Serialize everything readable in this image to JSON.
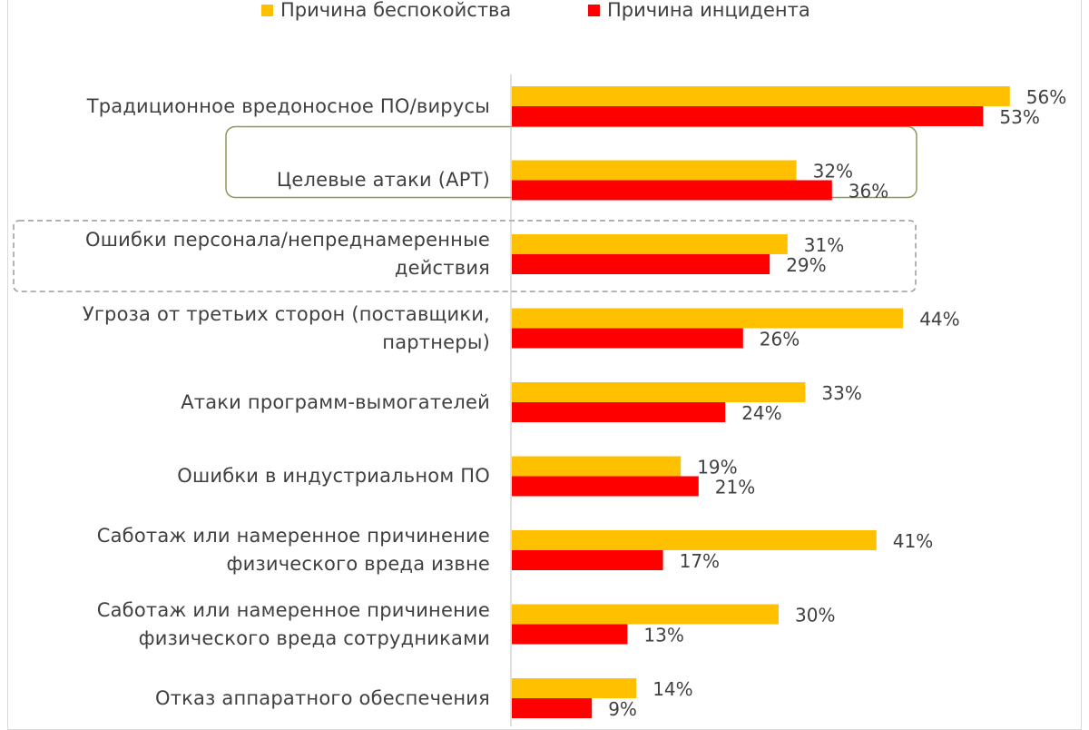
{
  "chart_data": {
    "type": "bar",
    "orientation": "horizontal",
    "categories": [
      "Традиционное вредоносное ПО/вирусы",
      "Целевые атаки (APT)",
      "Ошибки персонала/непреднамеренные действия",
      "Угроза от третьих сторон (поставщики, партнеры)",
      "Атаки программ-вымогателей",
      "Ошибки в индустриальном ПО",
      "Саботаж или намеренное причинение физического вреда извне",
      "Саботаж или намеренное причинение физического вреда сотрудниками",
      "Отказ аппаратного обеспечения"
    ],
    "category_lines": [
      [
        "Традиционное вредоносное ПО/вирусы"
      ],
      [
        "Целевые атаки (APT)"
      ],
      [
        "Ошибки персонала/непреднамеренные",
        "действия"
      ],
      [
        "Угроза от третьих сторон (поставщики,",
        "партнеры)"
      ],
      [
        "Атаки программ-вымогателей"
      ],
      [
        "Ошибки в индустриальном ПО"
      ],
      [
        "Саботаж или намеренное причинение",
        "физического вреда извне"
      ],
      [
        "Саботаж или намеренное причинение",
        "физического вреда сотрудниками"
      ],
      [
        "Отказ аппаратного обеспечения"
      ]
    ],
    "series": [
      {
        "name": "Причина беспокойства",
        "color": "#ffc000",
        "values": [
          56,
          32,
          31,
          44,
          33,
          19,
          41,
          30,
          14
        ]
      },
      {
        "name": "Причина инцидента",
        "color": "#ff0000",
        "values": [
          53,
          36,
          29,
          26,
          24,
          21,
          17,
          13,
          9
        ]
      }
    ],
    "value_suffix": "%",
    "legend_position": "top",
    "grid": false,
    "highlighted_categories": [
      {
        "category": "Целевые атаки (APT)",
        "style": "solid"
      },
      {
        "category": "Ошибки персонала/непреднамеренные действия",
        "style": "dashed"
      }
    ]
  },
  "colors": {
    "text": "#404040",
    "axis": "#bfbfbf",
    "highlight_border": "#8a9a5b",
    "dashed_border": "#9a9a9a"
  }
}
